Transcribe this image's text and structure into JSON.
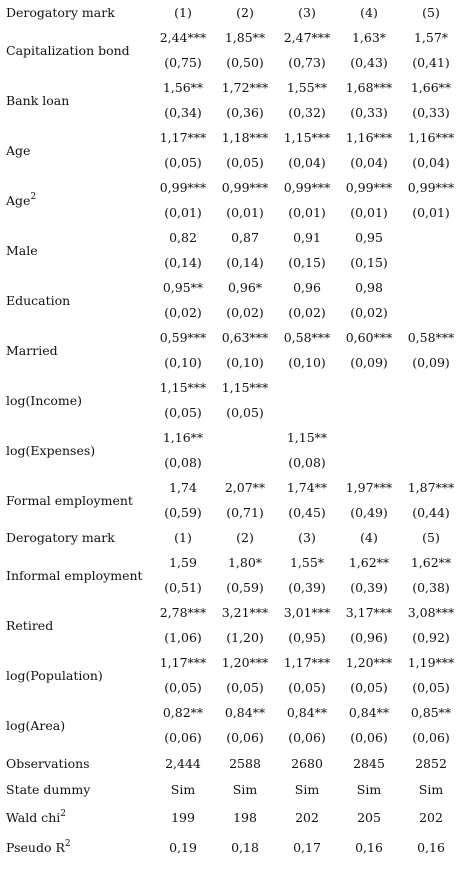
{
  "table": {
    "header1": {
      "label": "Derogatory mark",
      "cols": [
        "(1)",
        "(2)",
        "(3)",
        "(4)",
        "(5)"
      ]
    },
    "header2": {
      "label": "Derogatory mark",
      "cols": [
        "(1)",
        "(2)",
        "(3)",
        "(4)",
        "(5)"
      ]
    },
    "vars": {
      "capitalization_bond": {
        "label": "Capitalization bond",
        "coef": [
          "2,44***",
          "1,85**",
          "2,47***",
          "1,63*",
          "1,57*"
        ],
        "se": [
          "(0,75)",
          "(0,50)",
          "(0,73)",
          "(0,43)",
          "(0,41)"
        ]
      },
      "bank_loan": {
        "label": "Bank loan",
        "coef": [
          "1,56**",
          "1,72***",
          "1,55**",
          "1,68***",
          "1,66**"
        ],
        "se": [
          "(0,34)",
          "(0,36)",
          "(0,32)",
          "(0,33)",
          "(0,33)"
        ]
      },
      "age": {
        "label": "Age",
        "coef": [
          "1,17***",
          "1,18***",
          "1,15***",
          "1,16***",
          "1,16***"
        ],
        "se": [
          "(0,05)",
          "(0,05)",
          "(0,04)",
          "(0,04)",
          "(0,04)"
        ]
      },
      "age2": {
        "label": "Age",
        "sup": "2",
        "coef": [
          "0,99***",
          "0,99***",
          "0,99***",
          "0,99***",
          "0,99***"
        ],
        "se": [
          "(0,01)",
          "(0,01)",
          "(0,01)",
          "(0,01)",
          "(0,01)"
        ]
      },
      "male": {
        "label": "Male",
        "coef": [
          "0,82",
          "0,87",
          "0,91",
          "0,95",
          ""
        ],
        "se": [
          "(0,14)",
          "(0,14)",
          "(0,15)",
          "(0,15)",
          ""
        ]
      },
      "education": {
        "label": "Education",
        "coef": [
          "0,95**",
          "0,96*",
          "0,96",
          "0,98",
          ""
        ],
        "se": [
          "(0,02)",
          "(0,02)",
          "(0,02)",
          "(0,02)",
          ""
        ]
      },
      "married": {
        "label": "Married",
        "coef": [
          "0,59***",
          "0,63***",
          "0,58***",
          "0,60***",
          "0,58***"
        ],
        "se": [
          "(0,10)",
          "(0,10)",
          "(0,10)",
          "(0,09)",
          "(0,09)"
        ]
      },
      "log_income": {
        "label": "log(Income)",
        "coef": [
          "1,15***",
          "1,15***",
          "",
          "",
          ""
        ],
        "se": [
          "(0,05)",
          "(0,05)",
          "",
          "",
          ""
        ]
      },
      "log_expenses": {
        "label": "log(Expenses)",
        "coef": [
          "1,16**",
          "",
          "1,15**",
          "",
          ""
        ],
        "se": [
          "(0,08)",
          "",
          "(0,08)",
          "",
          ""
        ]
      },
      "formal_employment": {
        "label": "Formal employment",
        "coef": [
          "1,74",
          "2,07**",
          "1,74**",
          "1,97***",
          "1,87***"
        ],
        "se": [
          "(0,59)",
          "(0,71)",
          "(0,45)",
          "(0,49)",
          "(0,44)"
        ]
      },
      "informal_employment": {
        "label": "Informal employment",
        "coef": [
          "1,59",
          "1,80*",
          "1,55*",
          "1,62**",
          "1,62**"
        ],
        "se": [
          "(0,51)",
          "(0,59)",
          "(0,39)",
          "(0,39)",
          "(0,38)"
        ]
      },
      "retired": {
        "label": "Retired",
        "coef": [
          "2,78***",
          "3,21***",
          "3,01***",
          "3,17***",
          "3,08***"
        ],
        "se": [
          "(1,06)",
          "(1,20)",
          "(0,95)",
          "(0,96)",
          "(0,92)"
        ]
      },
      "log_population": {
        "label": "log(Population)",
        "coef": [
          "1,17***",
          "1,20***",
          "1,17***",
          "1,20***",
          "1,19***"
        ],
        "se": [
          "(0,05)",
          "(0,05)",
          "(0,05)",
          "(0,05)",
          "(0,05)"
        ]
      },
      "log_area": {
        "label": "log(Area)",
        "coef": [
          "0,82**",
          "0,84**",
          "0,84**",
          "0,84**",
          "0,85**"
        ],
        "se": [
          "(0,06)",
          "(0,06)",
          "(0,06)",
          "(0,06)",
          "(0,06)"
        ]
      }
    },
    "stats": {
      "observations": {
        "label": "Observations",
        "vals": [
          "2,444",
          "2588",
          "2680",
          "2845",
          "2852"
        ]
      },
      "state_dummy": {
        "label": "State dummy",
        "vals": [
          "Sim",
          "Sim",
          "Sim",
          "Sim",
          "Sim"
        ]
      },
      "wald_chi2": {
        "label": "Wald chi",
        "sup": "2",
        "vals": [
          "199",
          "198",
          "202",
          "205",
          "202"
        ]
      },
      "pseudo_r2": {
        "label": "Pseudo R",
        "sup": "2",
        "vals": [
          "0,19",
          "0,18",
          "0,17",
          "0,16",
          "0,16"
        ]
      }
    }
  }
}
